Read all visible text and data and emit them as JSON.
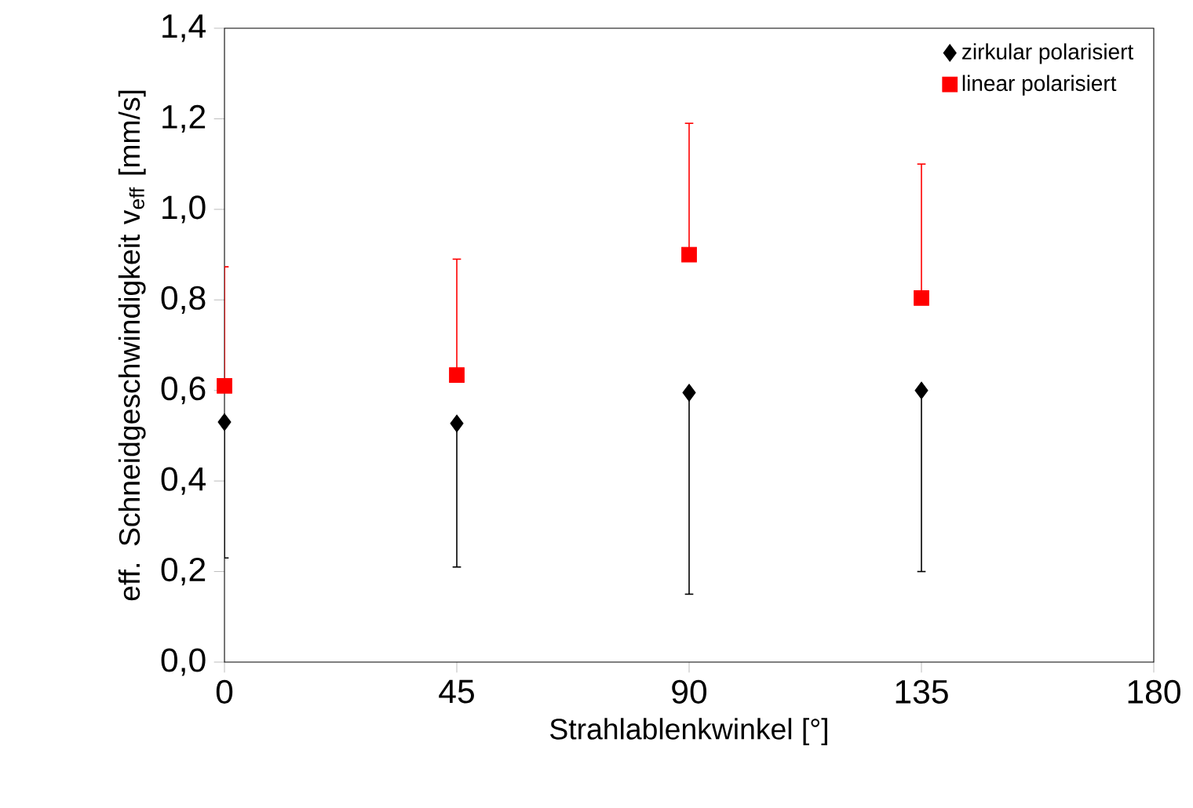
{
  "chart_data": {
    "type": "scatter",
    "xlabel": "Strahlablenkwinkel [°]",
    "ylabel": "eff. Schneidgeschwindigkeit v$_{eff}$ [mm/s]",
    "x": [
      0,
      45,
      90,
      135
    ],
    "series": [
      {
        "name": "zirkular polarisiert",
        "color": "#000000",
        "marker": "diamond",
        "values": [
          0.53,
          0.527,
          0.595,
          0.6
        ],
        "errors": [
          [
            0.23,
            0.53
          ],
          [
            0.21,
            0.527
          ],
          [
            0.15,
            0.595
          ],
          [
            0.2,
            0.6
          ]
        ]
      },
      {
        "name": "linear polarisiert",
        "color": "#ff0000",
        "marker": "square",
        "values": [
          0.61,
          0.634,
          0.9,
          0.804
        ],
        "errors": [
          [
            0.61,
            0.873
          ],
          [
            0.634,
            0.89
          ],
          [
            0.9,
            1.19
          ],
          [
            0.804,
            1.1
          ]
        ]
      }
    ],
    "xlim": [
      0,
      180
    ],
    "xticks": [
      0,
      45,
      90,
      135,
      180
    ],
    "ylim": [
      0,
      1.4
    ],
    "yticks": [
      {
        "value": 0,
        "label": "0,0"
      },
      {
        "value": 0.2,
        "label": "0,2"
      },
      {
        "value": 0.4,
        "label": "0,4"
      },
      {
        "value": 0.6,
        "label": "0,6"
      },
      {
        "value": 0.8,
        "label": "0,8"
      },
      {
        "value": 1.0,
        "label": "1,0"
      },
      {
        "value": 1.2,
        "label": "1,2"
      },
      {
        "value": 1.4,
        "label": "1,4"
      }
    ],
    "grid": false,
    "legend": "top right"
  }
}
